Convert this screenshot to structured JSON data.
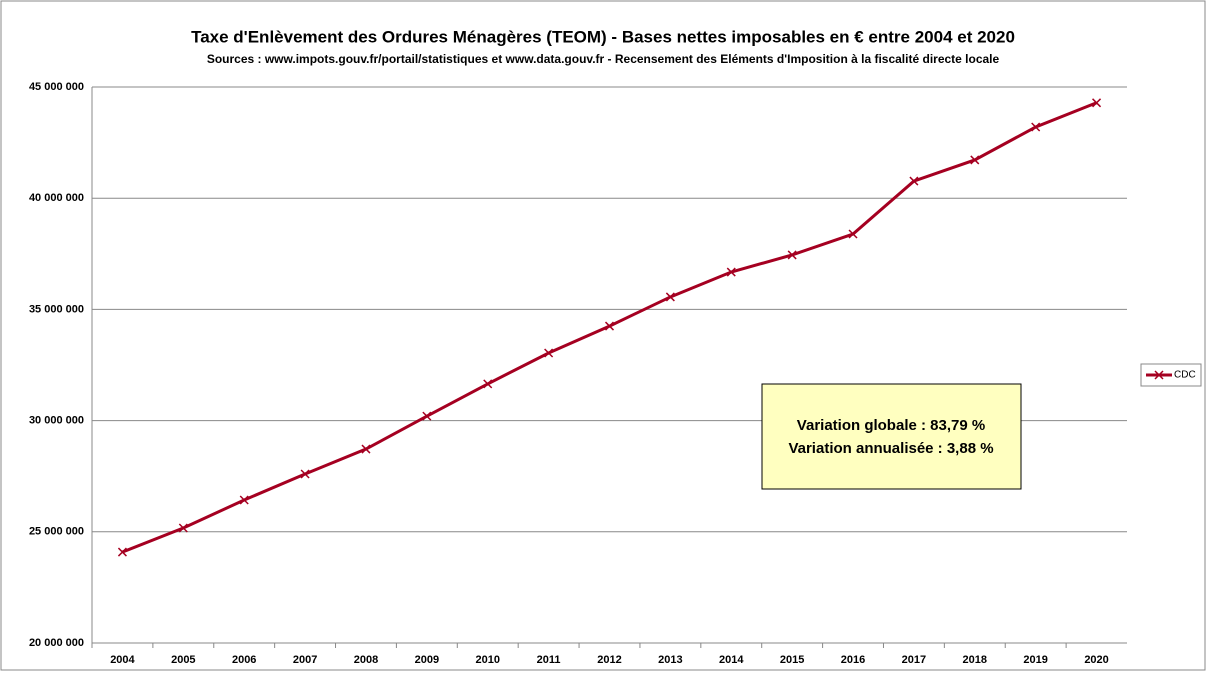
{
  "chart_data": {
    "type": "line",
    "title": "Taxe d'Enlèvement des Ordures Ménagères (TEOM) - Bases nettes imposables en € entre 2004 et 2020",
    "subtitle": "Sources : www.impots.gouv.fr/portail/statistiques et www.data.gouv.fr - Recensement des Eléments d'Imposition à la fiscalité directe locale",
    "categories": [
      "2004",
      "2005",
      "2006",
      "2007",
      "2008",
      "2009",
      "2010",
      "2011",
      "2012",
      "2013",
      "2014",
      "2015",
      "2016",
      "2017",
      "2018",
      "2019",
      "2020"
    ],
    "series": [
      {
        "name": "CDC",
        "color": "#a50021",
        "values": [
          24090000,
          25170000,
          26430000,
          27600000,
          28720000,
          30200000,
          31650000,
          33040000,
          34250000,
          35560000,
          36680000,
          37450000,
          38390000,
          40770000,
          41720000,
          43200000,
          44290000
        ]
      }
    ],
    "ylim": [
      20000000,
      45000000
    ],
    "yticks": [
      {
        "value": 20000000,
        "label": "20 000 000"
      },
      {
        "value": 25000000,
        "label": "25 000 000"
      },
      {
        "value": 30000000,
        "label": "30 000 000"
      },
      {
        "value": 35000000,
        "label": "35 000 000"
      },
      {
        "value": 40000000,
        "label": "40 000 000"
      },
      {
        "value": 45000000,
        "label": "45 000 000"
      }
    ],
    "grid": true,
    "legend": "right",
    "annotations": [
      "Variation globale : 83,79 %",
      "Variation annualisée : 3,88 %"
    ]
  }
}
